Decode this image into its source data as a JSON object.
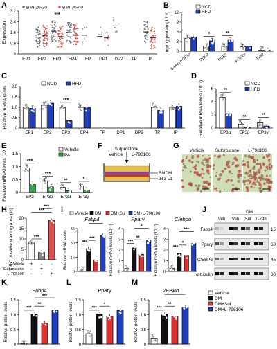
{
  "colors": {
    "ncd": "#ffffff",
    "hfd": "#1f3fbf",
    "vehicle": "#ffffff",
    "pa": "#2ea84a",
    "dm": "#111111",
    "sul": "#e03030",
    "l798": "#1f3fbf",
    "bmi_lean": "#777777",
    "bmi_obese": "#e05050"
  },
  "chart_data": [
    {
      "id": "A",
      "type": "scatter",
      "panel_label": "A",
      "ylabel": "Expression",
      "yticks": [
        "0",
        "0.8",
        "1.6",
        "2.4",
        "3.2"
      ],
      "ylim": [
        0,
        3.2
      ],
      "categories": [
        "EP1",
        "EP2",
        "EP3",
        "EP4",
        "FP",
        "DP1",
        "DP2",
        "TP",
        "IP"
      ],
      "legend": [
        "BMI:20-30",
        "BMI:30-40"
      ],
      "series": [
        {
          "name": "BMI:20-30",
          "means": [
            0,
            1.25,
            1.7,
            1.6,
            1.4,
            1.3,
            2.1,
            0,
            1.65
          ]
        },
        {
          "name": "BMI:30-40",
          "means": [
            0,
            1.35,
            1.3,
            1.4,
            0,
            1.2,
            0,
            0,
            1.2
          ]
        }
      ],
      "significance": [
        {
          "category": "EP3",
          "stars": "***"
        }
      ]
    },
    {
      "id": "B",
      "type": "bar",
      "panel_label": "B",
      "ylabel": "ng/mg protein (10⁻²)",
      "yticks": [
        "0",
        "3",
        "6",
        "9",
        "12"
      ],
      "ylim": [
        0,
        12
      ],
      "categories": [
        "6-keto-PGF1α",
        "PGD2",
        "PGE2",
        "PGF2α",
        "TxB2"
      ],
      "legend": [
        "NCD",
        "HFD"
      ],
      "series": [
        {
          "name": "NCD",
          "values": [
            4.0,
            1.6,
            1.5,
            1.4,
            0.3
          ]
        },
        {
          "name": "HFD",
          "values": [
            4.4,
            3.2,
            3.4,
            1.5,
            0.3
          ]
        }
      ],
      "significance": [
        {
          "category": "PGD2",
          "stars": "*"
        },
        {
          "category": "PGE2",
          "stars": "**"
        }
      ]
    },
    {
      "id": "C",
      "type": "bar",
      "panel_label": "C",
      "ylabel": "Relative mRNA levels",
      "yticks": [
        "0",
        "0.5",
        "1.0",
        "1.5",
        "2.0"
      ],
      "ylim": [
        0,
        2.0
      ],
      "categories": [
        "EP1",
        "EP2",
        "EP3",
        "EP4",
        "FP",
        "DP1",
        "DP2",
        "TP",
        "IP"
      ],
      "legend": [
        "NCD",
        "HFD"
      ],
      "series": [
        {
          "name": "NCD",
          "values": [
            1.0,
            1.1,
            1.0,
            1.0,
            0,
            0,
            0,
            1.0,
            1.0
          ]
        },
        {
          "name": "HFD",
          "values": [
            0.95,
            1.2,
            0.35,
            1.0,
            0,
            0,
            0,
            0.85,
            1.05
          ]
        }
      ],
      "significance": [
        {
          "category": "EP3",
          "stars": "***"
        }
      ]
    },
    {
      "id": "D",
      "type": "bar",
      "panel_label": "D",
      "ylabel": "Relative mRNA levels (10⁻²)",
      "yticks": [
        "0",
        "2",
        "4",
        "6"
      ],
      "ylim": [
        0,
        6
      ],
      "categories": [
        "EP3α",
        "EP3β",
        "EP3γ"
      ],
      "legend": [
        "NCD",
        "HFD"
      ],
      "series": [
        {
          "name": "NCD",
          "values": [
            4.7,
            0.6,
            0.9
          ]
        },
        {
          "name": "HFD",
          "values": [
            2.2,
            0.15,
            0.3
          ]
        }
      ],
      "significance": [
        {
          "category": "EP3α",
          "stars": "**"
        },
        {
          "category": "EP3β",
          "stars": "**"
        },
        {
          "category": "EP3γ",
          "stars": "**"
        }
      ]
    },
    {
      "id": "E",
      "type": "bar",
      "panel_label": "E",
      "ylabel": "Relative mRNA levels (10⁻²)",
      "yticks": [
        "0",
        "0.5",
        "1.0",
        "1.5"
      ],
      "ylim": [
        0,
        1.5
      ],
      "categories": [
        "EP3",
        "EP3α",
        "EP3β",
        "EP3γ"
      ],
      "legend": [
        "Vehicle",
        "PA"
      ],
      "series": [
        {
          "name": "Vehicle",
          "values": [
            0.95,
            0.45,
            0.2,
            0.25
          ]
        },
        {
          "name": "PA",
          "values": [
            0.32,
            0.22,
            0.07,
            0.1
          ]
        }
      ],
      "significance": [
        {
          "category": "EP3",
          "stars": "***"
        },
        {
          "category": "EP3α",
          "stars": "***"
        },
        {
          "category": "EP3β",
          "stars": "**"
        },
        {
          "category": "EP3γ",
          "stars": "*"
        }
      ]
    },
    {
      "id": "H",
      "type": "bar",
      "panel_label": "H",
      "ylabel": "ORO positive staining area (%)",
      "yticks": [
        "0",
        "5",
        "10",
        "15",
        "20"
      ],
      "ylim": [
        0,
        20
      ],
      "categories": [
        "Vehicle",
        "Sulprostone",
        "L-798106"
      ],
      "values": [
        8.0,
        3.5,
        19.0
      ],
      "significance": [
        {
          "pair": [
            0,
            1
          ],
          "stars": "***"
        },
        {
          "pair": [
            0,
            2
          ],
          "stars": "***"
        },
        {
          "pair": [
            1,
            2
          ],
          "stars": "***"
        }
      ]
    },
    {
      "id": "I1",
      "type": "bar",
      "panel_label": "I",
      "title": "Fabp4",
      "ylabel": "Relative mRNA levels",
      "yticks": [
        "0",
        "15",
        "30",
        "45"
      ],
      "ylim": [
        0,
        45
      ],
      "categories": [
        "Vehicle",
        "DM",
        "DM+Sul",
        "DM+L-798106"
      ],
      "values": [
        0.5,
        24,
        12,
        38
      ],
      "significance": [
        {
          "stars": "***"
        },
        {
          "stars": "***"
        },
        {
          "stars": "***"
        }
      ]
    },
    {
      "id": "I2",
      "type": "bar",
      "title": "Pparγ",
      "ylabel": "Relative mRNA levels (10⁻²)",
      "yticks": [
        "0",
        "1",
        "2",
        "3",
        "4"
      ],
      "ylim": [
        0,
        4
      ],
      "categories": [
        "Vehicle",
        "DM",
        "DM+Sul",
        "DM+L-798106"
      ],
      "values": [
        0.3,
        2.2,
        1.6,
        2.9
      ],
      "significance": [
        {
          "stars": "***"
        },
        {
          "stars": "**"
        },
        {
          "stars": "*"
        }
      ]
    },
    {
      "id": "I3",
      "type": "bar",
      "title": "C/ebpα",
      "ylabel": "Relative mRNA levels (10⁻²)",
      "yticks": [
        "0",
        "1",
        "2",
        "3",
        "4"
      ],
      "ylim": [
        0,
        4
      ],
      "categories": [
        "Vehicle",
        "DM",
        "DM+Sul",
        "DM+L-798106"
      ],
      "values": [
        0.3,
        1.7,
        1.5,
        2.6
      ],
      "significance": [
        {
          "stars": "***"
        },
        {
          "stars": "*"
        },
        {
          "stars": "***"
        }
      ]
    },
    {
      "id": "K",
      "type": "bar",
      "panel_label": "K",
      "title": "Fabp4",
      "ylabel": "Relative protein levels",
      "yticks": [
        "0",
        "0.5",
        "1.0",
        "1.5"
      ],
      "ylim": [
        0,
        1.5
      ],
      "categories": [
        "Vehicle",
        "DM",
        "DM+Sul",
        "DM+L-798106"
      ],
      "values": [
        0.02,
        1.0,
        0.72,
        1.15
      ],
      "significance": [
        {
          "stars": "***"
        },
        {
          "stars": "**"
        },
        {
          "stars": "***"
        }
      ]
    },
    {
      "id": "L",
      "type": "bar",
      "panel_label": "L",
      "title": "Pparγ",
      "ylabel": "Relative protein levels",
      "yticks": [
        "0",
        "0.5",
        "1.0",
        "1.5"
      ],
      "ylim": [
        0,
        1.5
      ],
      "categories": [
        "Vehicle",
        "DM",
        "DM+Sul",
        "DM+L-798106"
      ],
      "values": [
        0.35,
        1.0,
        0.95,
        1.15
      ],
      "significance": [
        {
          "stars": "***"
        },
        {
          "stars": "*"
        }
      ]
    },
    {
      "id": "M",
      "type": "bar",
      "panel_label": "M",
      "title": "C/EBPα",
      "ylabel": "Relative protein levels",
      "yticks": [
        "0",
        "0.5",
        "1.0",
        "1.5"
      ],
      "ylim": [
        0,
        1.5
      ],
      "categories": [
        "Vehicle",
        "DM",
        "DM+Sul",
        "DM+L-798106"
      ],
      "values": [
        0.2,
        1.0,
        0.95,
        1.25
      ],
      "significance": [
        {
          "stars": "***"
        },
        {
          "stars": "**"
        },
        {
          "stars": "***"
        }
      ]
    }
  ],
  "panel_F": {
    "label": "F",
    "top_label": "Sulprostone",
    "vehicle_label": "Vehicle",
    "drug_label": "L-798106",
    "layer1": "BMDM",
    "layer2": "3T3-L1"
  },
  "panel_G": {
    "label": "G",
    "titles": [
      "Vehicle",
      "Sulprostone",
      "L-798106"
    ]
  },
  "panel_H_xlabels": {
    "rows": [
      "Vehicle",
      "Sulprostone",
      "L-798106"
    ],
    "cols": [
      [
        "+",
        "-",
        "-"
      ],
      [
        "-",
        "+",
        "-"
      ],
      [
        "-",
        "-",
        "+"
      ]
    ]
  },
  "panel_J": {
    "label": "J",
    "group_label": "DM",
    "lanes": [
      "Veh",
      "Veh",
      "Sul",
      "L-798"
    ],
    "proteins": [
      "Fabp4",
      "Pparγ",
      "C/EBPα",
      "α-tubulin"
    ],
    "mw": [
      "15",
      "60",
      "45",
      "60"
    ]
  },
  "legend_I": [
    "Vehicle",
    "DM",
    "DM+Sul",
    "DM+L-798106"
  ],
  "legend_KLM": [
    "Vehicle",
    "DM",
    "DM+Sul",
    "DM+L-798106"
  ]
}
